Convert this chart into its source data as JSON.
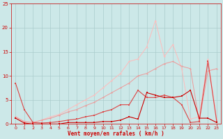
{
  "x": [
    0,
    1,
    2,
    3,
    4,
    5,
    6,
    7,
    8,
    9,
    10,
    11,
    12,
    13,
    14,
    15,
    16,
    17,
    18,
    19,
    20,
    21,
    22,
    23
  ],
  "line_dark": [
    1.2,
    0.2,
    0.0,
    0.0,
    0.0,
    0.0,
    0.3,
    0.3,
    0.3,
    0.3,
    0.5,
    0.5,
    0.8,
    1.5,
    1.0,
    6.5,
    6.0,
    5.5,
    5.5,
    5.8,
    7.0,
    1.2,
    1.2,
    0.3
  ],
  "line_med": [
    8.5,
    3.0,
    0.3,
    0.2,
    0.3,
    0.5,
    0.8,
    1.0,
    1.5,
    1.8,
    2.5,
    3.0,
    4.0,
    4.0,
    7.0,
    5.5,
    5.5,
    6.0,
    5.5,
    4.0,
    0.3,
    0.5,
    13.0,
    0.5
  ],
  "line_light1": [
    1.5,
    0.5,
    0.3,
    0.8,
    1.2,
    1.8,
    2.5,
    3.0,
    3.8,
    4.5,
    5.5,
    6.5,
    7.5,
    8.5,
    10.0,
    10.5,
    11.5,
    12.5,
    13.0,
    12.0,
    11.5,
    0.5,
    11.0,
    11.5
  ],
  "line_lightest": [
    1.5,
    0.5,
    0.3,
    0.8,
    1.5,
    2.0,
    3.0,
    4.0,
    5.0,
    6.0,
    7.5,
    9.0,
    10.5,
    13.0,
    13.5,
    16.0,
    21.5,
    14.0,
    16.5,
    11.5,
    1.0,
    1.5,
    13.5,
    1.0
  ],
  "bg_color": "#cce8e8",
  "grid_color": "#aacccc",
  "line_dark_color": "#cc0000",
  "line_med_color": "#dd4444",
  "line_light1_color": "#ee9999",
  "line_lightest_color": "#ffbbbb",
  "xlabel": "Vent moyen/en rafales ( km/h )",
  "xlabel_color": "#cc0000",
  "tick_color": "#cc0000",
  "ylim": [
    0,
    25
  ],
  "xlim_min": -0.5,
  "xlim_max": 23.5,
  "yticks": [
    0,
    5,
    10,
    15,
    20,
    25
  ],
  "xticks": [
    0,
    1,
    2,
    3,
    4,
    5,
    6,
    7,
    8,
    9,
    10,
    11,
    12,
    13,
    14,
    15,
    16,
    17,
    18,
    19,
    20,
    21,
    22,
    23
  ]
}
